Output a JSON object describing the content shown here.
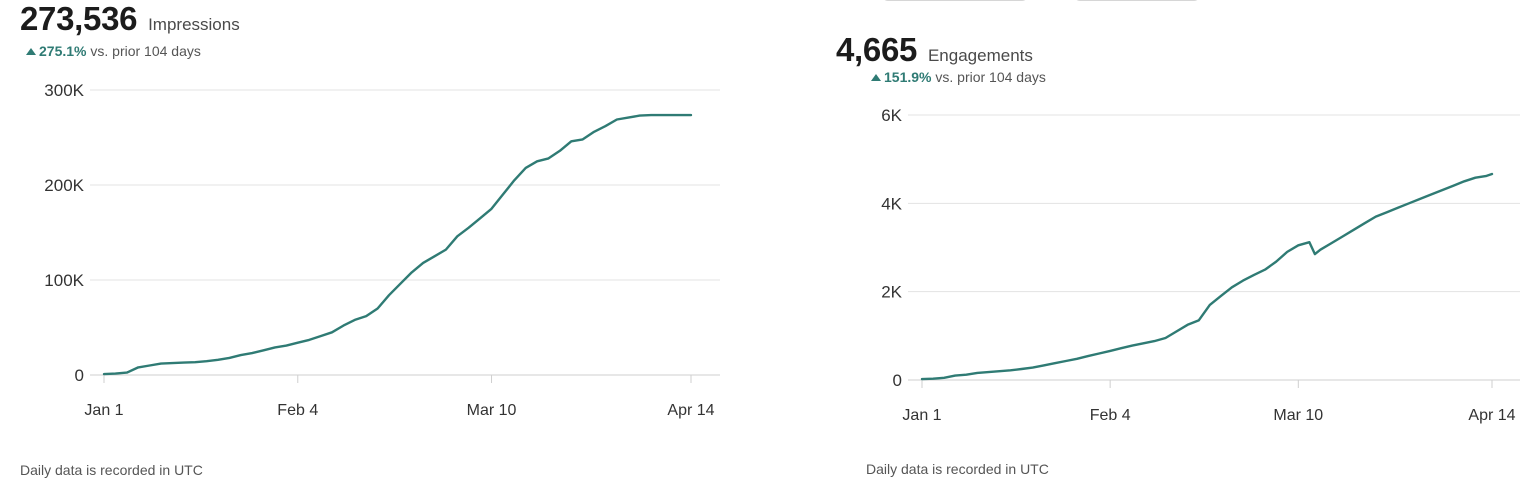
{
  "charts": [
    {
      "total": "273,536",
      "metric": "Impressions",
      "change": "275.1%",
      "change_suffix": "vs. prior 104 days",
      "footnote": "Daily data is recorded in UTC"
    },
    {
      "total": "4,665",
      "metric": "Engagements",
      "change": "151.9%",
      "change_suffix": "vs. prior 104 days",
      "footnote": "Daily data is recorded in UTC"
    }
  ],
  "colors": {
    "line": "#2f7b74",
    "up": "#2f7b74",
    "grid": "#e3e3e3"
  },
  "chart_data": [
    {
      "type": "line",
      "title": "273,536 Impressions",
      "x_ticks": [
        "Jan 1",
        "Feb 4",
        "Mar 10",
        "Apr 14"
      ],
      "x_tick_days": [
        0,
        34,
        68,
        103
      ],
      "y_ticks": [
        "0",
        "100K",
        "200K",
        "300K"
      ],
      "y_tick_values": [
        0,
        100000,
        200000,
        300000
      ],
      "ylim": [
        0,
        300000
      ],
      "xlim": [
        0,
        103
      ],
      "grid": true,
      "series": [
        {
          "x": [
            0,
            2,
            4,
            6,
            8,
            10,
            12,
            14,
            16,
            18,
            20,
            22,
            24,
            26,
            28,
            30,
            32,
            34,
            36,
            38,
            40,
            42,
            44,
            46,
            48,
            50,
            52,
            54,
            56,
            58,
            60,
            62,
            64,
            66,
            68,
            70,
            72,
            74,
            76,
            78,
            80,
            82,
            84,
            86,
            88,
            90,
            92,
            94,
            96,
            98,
            100,
            102,
            103
          ],
          "y": [
            1000,
            1500,
            2500,
            8000,
            10000,
            12000,
            12500,
            13000,
            13500,
            14500,
            16000,
            18000,
            21000,
            23000,
            26000,
            29000,
            31000,
            34000,
            37000,
            41000,
            45000,
            52000,
            58000,
            62000,
            70000,
            84000,
            96000,
            108000,
            118000,
            125000,
            132000,
            146000,
            155000,
            165000,
            175000,
            190000,
            205000,
            218000,
            225000,
            228000,
            236000,
            246000,
            248000,
            256000,
            262000,
            269000,
            271000,
            273000,
            273536,
            273536,
            273536,
            273536,
            273536
          ]
        }
      ]
    },
    {
      "type": "line",
      "title": "4,665 Engagements",
      "x_ticks": [
        "Jan 1",
        "Feb 4",
        "Mar 10",
        "Apr 14"
      ],
      "x_tick_days": [
        0,
        34,
        68,
        103
      ],
      "y_ticks": [
        "0",
        "2K",
        "4K",
        "6K"
      ],
      "y_tick_values": [
        0,
        2000,
        4000,
        6000
      ],
      "ylim": [
        0,
        6000
      ],
      "xlim": [
        0,
        103
      ],
      "grid": true,
      "series": [
        {
          "x": [
            0,
            2,
            4,
            6,
            8,
            10,
            12,
            14,
            16,
            18,
            20,
            22,
            24,
            26,
            28,
            30,
            32,
            34,
            36,
            38,
            40,
            42,
            44,
            46,
            48,
            50,
            52,
            54,
            56,
            58,
            60,
            62,
            64,
            66,
            68,
            70,
            71,
            72,
            74,
            76,
            78,
            80,
            82,
            84,
            86,
            88,
            90,
            92,
            94,
            96,
            98,
            100,
            102,
            103
          ],
          "y": [
            20,
            30,
            50,
            100,
            120,
            160,
            180,
            200,
            220,
            250,
            280,
            330,
            380,
            430,
            480,
            540,
            600,
            660,
            720,
            780,
            830,
            880,
            950,
            1100,
            1250,
            1350,
            1700,
            1900,
            2100,
            2250,
            2380,
            2500,
            2680,
            2900,
            3050,
            3120,
            2850,
            2950,
            3100,
            3250,
            3400,
            3550,
            3700,
            3800,
            3900,
            4000,
            4100,
            4200,
            4300,
            4400,
            4500,
            4580,
            4620,
            4665
          ]
        }
      ]
    }
  ]
}
